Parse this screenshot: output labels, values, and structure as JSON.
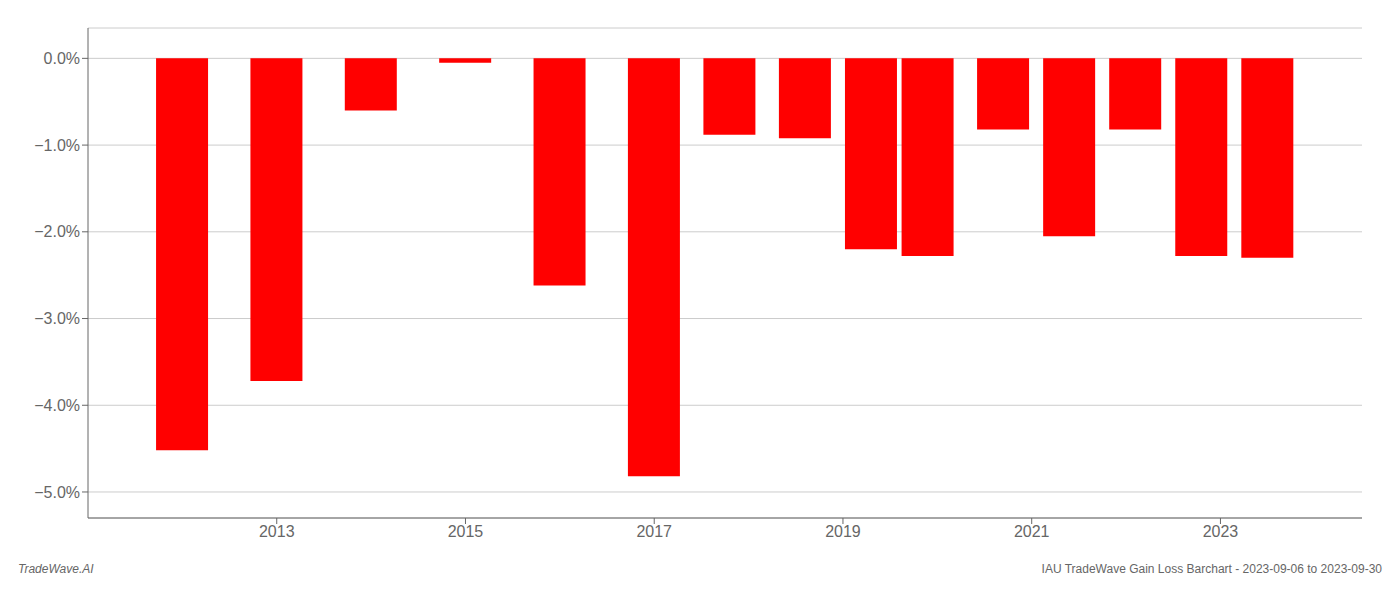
{
  "chart_data": {
    "type": "bar",
    "annotations": [
      "TradeWave.AI",
      "IAU TradeWave Gain Loss Barchart - 2023-09-06 to 2023-09-30"
    ],
    "x": [
      2012,
      2013,
      2014,
      2015,
      2016,
      2017,
      2017.8,
      2018.6,
      2019.3,
      2019.9,
      2020.7,
      2021.4,
      2022.1,
      2022.8,
      2023.5
    ],
    "values": [
      -4.52,
      -3.72,
      -0.6,
      -0.05,
      -2.62,
      -4.82,
      -0.88,
      -0.92,
      -2.2,
      -2.28,
      -0.82,
      -2.05,
      -0.82,
      -2.28,
      -2.3
    ],
    "color": "#ff0000",
    "xlim": [
      2011.0,
      2024.5
    ],
    "xticks": [
      2013,
      2015,
      2017,
      2019,
      2021,
      2023
    ],
    "ylim": [
      -5.3,
      0.35
    ],
    "yticks": [
      {
        "value": 0.0,
        "label": "0.0%"
      },
      {
        "value": -1.0,
        "label": "−1.0%"
      },
      {
        "value": -2.0,
        "label": "−2.0%"
      },
      {
        "value": -3.0,
        "label": "−3.0%"
      },
      {
        "value": -4.0,
        "label": "−4.0%"
      },
      {
        "value": -5.0,
        "label": "−5.0%"
      }
    ],
    "grid": true
  }
}
